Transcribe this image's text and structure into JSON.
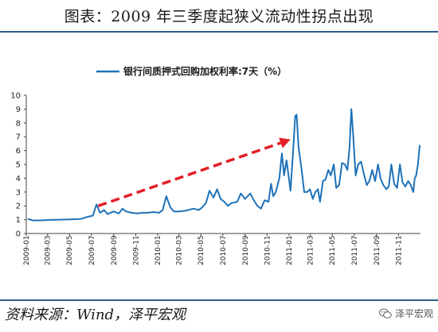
{
  "header": {
    "title": "图表：2009 年三季度起狭义流动性拐点出现"
  },
  "footer": {
    "source": "资料来源：Wind，泽平宏观",
    "watermark": "泽平宏观"
  },
  "colors": {
    "line": "#1f72b8",
    "arrow": "#e21f26",
    "rule": "#2e5f8a"
  },
  "icons": {
    "watermark_icon": "wechat-icon"
  },
  "chart_data": {
    "type": "line",
    "legend": "bottom-center",
    "legend_position": "top-center",
    "grid": false,
    "ylim": [
      0,
      10
    ],
    "yticks": [
      0,
      1,
      2,
      3,
      4,
      5,
      6,
      7,
      8,
      9,
      10
    ],
    "xlim": [
      "2009-01",
      "2012-01"
    ],
    "xticks": [
      "2009-01",
      "2009-03",
      "2009-05",
      "2009-07",
      "2009-09",
      "2009-11",
      "2010-01",
      "2010-03",
      "2010-05",
      "2010-07",
      "2010-09",
      "2010-11",
      "2011-01",
      "2011-03",
      "2011-05",
      "2011-07",
      "2011-09",
      "2011-11"
    ],
    "series": [
      {
        "name": "银行间质押式回购加权利率:7天（%）",
        "points": [
          [
            "2009-01-05",
            1.05
          ],
          [
            "2009-01-20",
            0.95
          ],
          [
            "2009-02-10",
            0.95
          ],
          [
            "2009-03-05",
            0.98
          ],
          [
            "2009-04-01",
            1.0
          ],
          [
            "2009-05-01",
            1.02
          ],
          [
            "2009-06-01",
            1.05
          ],
          [
            "2009-06-20",
            1.2
          ],
          [
            "2009-07-05",
            1.3
          ],
          [
            "2009-07-15",
            2.1
          ],
          [
            "2009-07-25",
            1.5
          ],
          [
            "2009-08-05",
            1.7
          ],
          [
            "2009-08-15",
            1.4
          ],
          [
            "2009-09-01",
            1.6
          ],
          [
            "2009-09-15",
            1.45
          ],
          [
            "2009-09-25",
            1.8
          ],
          [
            "2009-10-05",
            1.6
          ],
          [
            "2009-10-20",
            1.5
          ],
          [
            "2009-11-05",
            1.45
          ],
          [
            "2009-11-20",
            1.5
          ],
          [
            "2009-12-05",
            1.5
          ],
          [
            "2009-12-20",
            1.55
          ],
          [
            "2010-01-05",
            1.5
          ],
          [
            "2010-01-15",
            1.7
          ],
          [
            "2010-01-25",
            2.7
          ],
          [
            "2010-02-05",
            1.9
          ],
          [
            "2010-02-15",
            1.6
          ],
          [
            "2010-03-01",
            1.6
          ],
          [
            "2010-03-20",
            1.65
          ],
          [
            "2010-04-10",
            1.8
          ],
          [
            "2010-04-25",
            1.7
          ],
          [
            "2010-05-05",
            1.9
          ],
          [
            "2010-05-15",
            2.2
          ],
          [
            "2010-05-25",
            3.1
          ],
          [
            "2010-06-05",
            2.6
          ],
          [
            "2010-06-15",
            3.2
          ],
          [
            "2010-06-25",
            2.5
          ],
          [
            "2010-07-05",
            2.3
          ],
          [
            "2010-07-15",
            2.0
          ],
          [
            "2010-07-25",
            2.2
          ],
          [
            "2010-08-10",
            2.3
          ],
          [
            "2010-08-20",
            2.9
          ],
          [
            "2010-09-01",
            2.5
          ],
          [
            "2010-09-15",
            2.9
          ],
          [
            "2010-09-25",
            2.4
          ],
          [
            "2010-10-05",
            2.0
          ],
          [
            "2010-10-15",
            1.8
          ],
          [
            "2010-10-25",
            2.4
          ],
          [
            "2010-11-05",
            2.3
          ],
          [
            "2010-11-12",
            3.6
          ],
          [
            "2010-11-18",
            2.7
          ],
          [
            "2010-11-25",
            3.0
          ],
          [
            "2010-12-05",
            4.0
          ],
          [
            "2010-12-12",
            5.8
          ],
          [
            "2010-12-18",
            4.2
          ],
          [
            "2010-12-25",
            5.3
          ],
          [
            "2011-01-05",
            3.1
          ],
          [
            "2011-01-12",
            5.9
          ],
          [
            "2011-01-18",
            8.5
          ],
          [
            "2011-01-22",
            8.6
          ],
          [
            "2011-01-27",
            6.3
          ],
          [
            "2011-02-05",
            4.6
          ],
          [
            "2011-02-12",
            3.0
          ],
          [
            "2011-02-20",
            3.0
          ],
          [
            "2011-02-28",
            3.2
          ],
          [
            "2011-03-08",
            2.5
          ],
          [
            "2011-03-15",
            3.0
          ],
          [
            "2011-03-22",
            3.2
          ],
          [
            "2011-03-28",
            2.3
          ],
          [
            "2011-04-05",
            3.8
          ],
          [
            "2011-04-12",
            3.9
          ],
          [
            "2011-04-20",
            4.6
          ],
          [
            "2011-04-27",
            4.2
          ],
          [
            "2011-05-05",
            5.0
          ],
          [
            "2011-05-12",
            3.3
          ],
          [
            "2011-05-20",
            3.5
          ],
          [
            "2011-05-28",
            5.1
          ],
          [
            "2011-06-05",
            5.0
          ],
          [
            "2011-06-12",
            4.6
          ],
          [
            "2011-06-18",
            6.2
          ],
          [
            "2011-06-23",
            9.0
          ],
          [
            "2011-06-28",
            7.1
          ],
          [
            "2011-07-05",
            4.2
          ],
          [
            "2011-07-12",
            5.0
          ],
          [
            "2011-07-20",
            5.2
          ],
          [
            "2011-07-28",
            4.3
          ],
          [
            "2011-08-05",
            3.5
          ],
          [
            "2011-08-12",
            3.8
          ],
          [
            "2011-08-20",
            4.6
          ],
          [
            "2011-08-28",
            3.8
          ],
          [
            "2011-09-05",
            5.0
          ],
          [
            "2011-09-12",
            4.0
          ],
          [
            "2011-09-20",
            3.5
          ],
          [
            "2011-09-28",
            3.2
          ],
          [
            "2011-10-05",
            3.4
          ],
          [
            "2011-10-12",
            5.0
          ],
          [
            "2011-10-20",
            3.6
          ],
          [
            "2011-10-28",
            3.3
          ],
          [
            "2011-11-05",
            5.0
          ],
          [
            "2011-11-12",
            3.7
          ],
          [
            "2011-11-20",
            3.4
          ],
          [
            "2011-11-28",
            3.8
          ],
          [
            "2011-12-05",
            3.5
          ],
          [
            "2011-12-12",
            3.0
          ],
          [
            "2011-12-16",
            4.0
          ],
          [
            "2011-12-20",
            4.2
          ],
          [
            "2011-12-25",
            5.0
          ],
          [
            "2011-12-30",
            6.4
          ]
        ]
      }
    ],
    "annotations": [
      {
        "type": "arrow",
        "style": "dashed",
        "from": [
          "2009-07-20",
          2.0
        ],
        "to": [
          "2011-01-05",
          6.8
        ]
      }
    ]
  }
}
